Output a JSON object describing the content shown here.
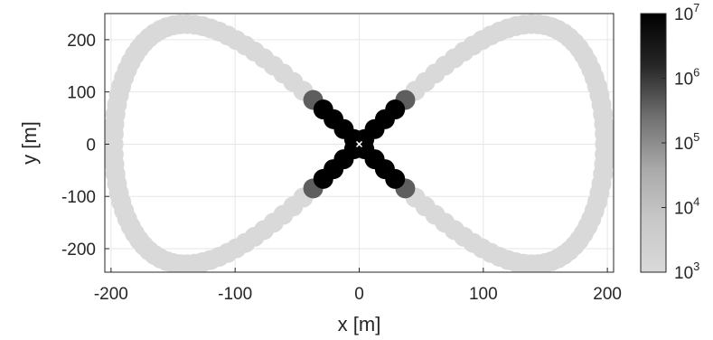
{
  "chart_data": {
    "type": "scatter",
    "title": "",
    "xlabel": "x [m]",
    "ylabel": "y [m]",
    "xlim": [
      -205,
      205
    ],
    "ylim": [
      -245,
      250
    ],
    "xticks": [
      -200,
      -100,
      0,
      100,
      200
    ],
    "yticks": [
      -200,
      -100,
      0,
      100,
      200
    ],
    "xtick_labels": [
      "-200",
      "-100",
      "0",
      "100",
      "200"
    ],
    "ytick_labels": [
      "-200",
      "-100",
      "0",
      "100",
      "200"
    ],
    "grid": true,
    "curve": "figure-eight (lemniscate) trajectory",
    "center_marker": {
      "x": 0,
      "y": 0,
      "symbol": "x"
    },
    "color_scale": "log",
    "colorbar": {
      "range": [
        1000,
        10000000
      ],
      "tick_bases": [
        "10",
        "10",
        "10",
        "10",
        "10"
      ],
      "tick_exponents": [
        "3",
        "4",
        "5",
        "6",
        "7"
      ],
      "colormap": "gray-reversed",
      "low_color": "#d9d9d9",
      "high_color": "#000000"
    },
    "points": [
      {
        "x": 197,
        "y": 0,
        "c": 1000
      },
      {
        "x": 195,
        "y": 65,
        "c": 1000
      },
      {
        "x": 190,
        "y": 130,
        "c": 1000
      },
      {
        "x": 175,
        "y": 195,
        "c": 1000
      },
      {
        "x": 150,
        "y": 230,
        "c": 1000
      },
      {
        "x": 120,
        "y": 220,
        "c": 1000
      },
      {
        "x": 90,
        "y": 180,
        "c": 1000
      },
      {
        "x": 60,
        "y": 130,
        "c": 3000
      },
      {
        "x": 45,
        "y": 95,
        "c": 100000
      },
      {
        "x": 30,
        "y": 70,
        "c": 10000000
      },
      {
        "x": 0,
        "y": 0,
        "c": 10000000
      },
      {
        "x": -30,
        "y": -70,
        "c": 10000000
      },
      {
        "x": -45,
        "y": -95,
        "c": 100000
      },
      {
        "x": -60,
        "y": -130,
        "c": 3000
      },
      {
        "x": -90,
        "y": -180,
        "c": 1000
      },
      {
        "x": -150,
        "y": -230,
        "c": 1000
      },
      {
        "x": -197,
        "y": 0,
        "c": 1000
      },
      {
        "x": -150,
        "y": 230,
        "c": 1000
      },
      {
        "x": -45,
        "y": 95,
        "c": 100000
      },
      {
        "x": 45,
        "y": -95,
        "c": 100000
      },
      {
        "x": 150,
        "y": -230,
        "c": 1000
      }
    ]
  }
}
